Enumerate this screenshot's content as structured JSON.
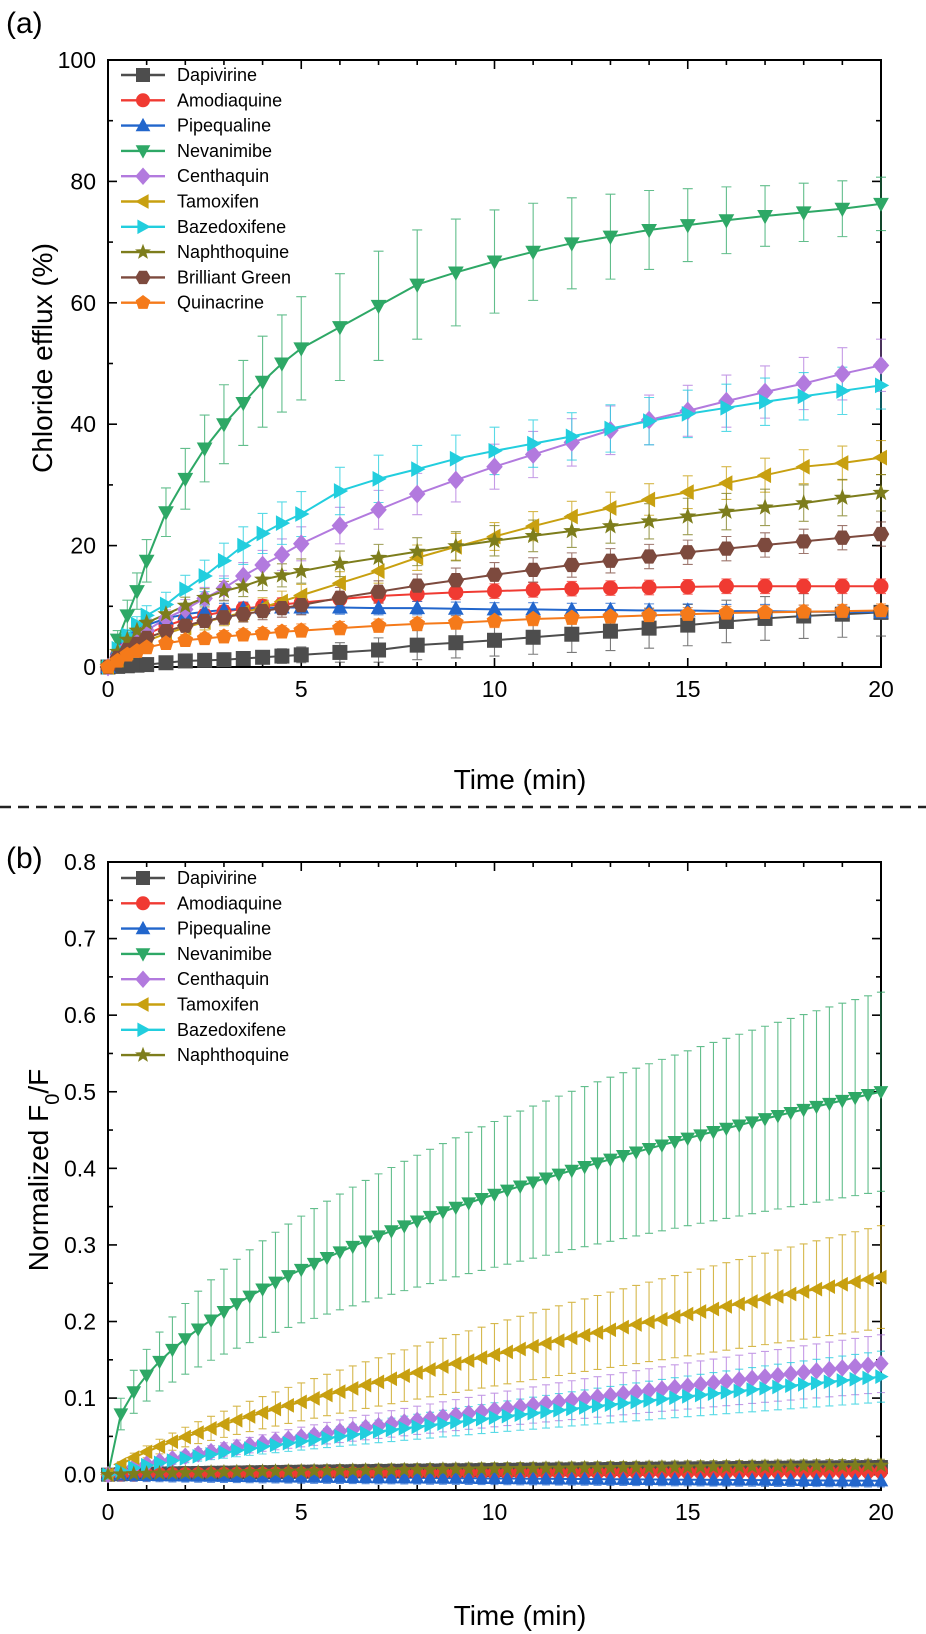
{
  "panels": {
    "a": {
      "label": "(a)"
    },
    "b": {
      "label": "(b)"
    }
  },
  "series_styles": {
    "Dapivirine": {
      "color": "#4d4d4d",
      "marker": "square"
    },
    "Amodiaquine": {
      "color": "#f03a32",
      "marker": "circle"
    },
    "Pipequaline": {
      "color": "#2266cc",
      "marker": "triangle-up"
    },
    "Nevanimibe": {
      "color": "#2ea866",
      "marker": "triangle-down"
    },
    "Centhaquin": {
      "color": "#b27ade",
      "marker": "diamond"
    },
    "Tamoxifen": {
      "color": "#c8a010",
      "marker": "triangle-left"
    },
    "Bazedoxifene": {
      "color": "#22cede",
      "marker": "triangle-right"
    },
    "Naphthoquine": {
      "color": "#7d7d1c",
      "marker": "star"
    },
    "Brilliant Green": {
      "color": "#7d4a3e",
      "marker": "hexagon"
    },
    "Quinacrine": {
      "color": "#f57a1a",
      "marker": "pentagon"
    }
  },
  "chart_data": [
    {
      "type": "line",
      "panel": "(a)",
      "xlabel": "Time (min)",
      "ylabel": "Chloride efflux (%)",
      "xlim": [
        0,
        20
      ],
      "ylim": [
        0,
        100
      ],
      "xticks": [
        "0",
        "5",
        "10",
        "15",
        "20"
      ],
      "yticks": [
        "0",
        "20",
        "40",
        "60",
        "80",
        "100"
      ],
      "legend_position": "top-left",
      "x": [
        0,
        0.25,
        0.5,
        0.75,
        1,
        1.5,
        2,
        2.5,
        3,
        3.5,
        4,
        4.5,
        5,
        6,
        7,
        8,
        9,
        10,
        11,
        12,
        13,
        14,
        15,
        16,
        17,
        18,
        19,
        20
      ],
      "series": [
        {
          "name": "Dapivirine",
          "values": [
            0,
            0.1,
            0.2,
            0.3,
            0.4,
            0.7,
            1,
            1.1,
            1.2,
            1.4,
            1.6,
            1.8,
            2,
            2.4,
            2.8,
            3.6,
            4,
            4.4,
            4.9,
            5.4,
            5.9,
            6.4,
            6.9,
            7.5,
            8,
            8.4,
            8.7,
            9
          ],
          "errors": [
            0,
            0.3,
            0.4,
            0.5,
            0.5,
            0.6,
            0.7,
            0.8,
            0.9,
            1,
            1.1,
            1.2,
            1.3,
            1.6,
            2,
            2.4,
            2.5,
            2.6,
            2.8,
            3,
            3.2,
            3.3,
            3.4,
            3.5,
            3.6,
            3.7,
            3.8,
            3.9
          ]
        },
        {
          "name": "Amodiaquine",
          "values": [
            0,
            2,
            3.5,
            4.6,
            5.4,
            6.8,
            7.8,
            8.5,
            9.1,
            9.6,
            10,
            10.3,
            10.6,
            11.2,
            11.7,
            12,
            12.3,
            12.5,
            12.7,
            12.9,
            13,
            13.1,
            13.2,
            13.3,
            13.3,
            13.3,
            13.3,
            13.3
          ],
          "errors": [
            0,
            0.5,
            0.6,
            0.7,
            0.8,
            0.9,
            1,
            1,
            1,
            1,
            1.1,
            1.1,
            1.1,
            1.2,
            1.2,
            1.2,
            1.2,
            1.2,
            1.2,
            1.2,
            1.2,
            1.2,
            1.2,
            1.2,
            1.2,
            1.2,
            1.2,
            1.2
          ]
        },
        {
          "name": "Pipequaline",
          "values": [
            0,
            3,
            4.8,
            6,
            6.9,
            8,
            8.7,
            9.1,
            9.4,
            9.6,
            9.7,
            9.8,
            9.8,
            9.8,
            9.7,
            9.7,
            9.6,
            9.5,
            9.5,
            9.4,
            9.4,
            9.3,
            9.3,
            9.2,
            9.2,
            9.1,
            9.1,
            9
          ],
          "errors": [
            0,
            0.6,
            0.8,
            0.9,
            1,
            1,
            1.1,
            1.1,
            1.1,
            1.1,
            1.1,
            1.1,
            1.1,
            1.1,
            1.1,
            1.1,
            1.1,
            1.1,
            1.1,
            1.1,
            1.1,
            1.1,
            1.1,
            1.1,
            1.1,
            1.1,
            1.1,
            1.1
          ]
        },
        {
          "name": "Nevanimibe",
          "values": [
            0,
            4.5,
            8.5,
            12.5,
            17.5,
            25.5,
            31,
            36,
            40,
            43.5,
            47,
            50,
            52.5,
            56,
            59.5,
            63,
            65,
            66.8,
            68.4,
            69.8,
            70.9,
            72,
            72.8,
            73.6,
            74.3,
            74.9,
            75.5,
            76.3
          ],
          "errors": [
            0,
            1.5,
            2.5,
            3,
            3.5,
            4,
            5,
            5.5,
            6.5,
            7,
            7.5,
            8,
            8.5,
            8.8,
            9,
            9,
            8.8,
            8.5,
            8,
            7.5,
            7,
            6.5,
            6,
            5.5,
            5,
            4.8,
            4.6,
            4.4
          ]
        },
        {
          "name": "Centhaquin",
          "values": [
            0,
            1.8,
            3.4,
            4.8,
            6,
            8,
            9.5,
            11.3,
            13,
            15,
            16.8,
            18.5,
            20.3,
            23.3,
            25.9,
            28.5,
            30.8,
            33,
            35,
            37,
            39,
            40.7,
            42.2,
            43.8,
            45.3,
            46.7,
            48.3,
            49.7
          ],
          "errors": [
            0,
            0.6,
            0.8,
            1,
            1.2,
            1.4,
            1.6,
            1.8,
            2,
            2.2,
            2.4,
            2.6,
            2.8,
            3,
            3.2,
            3.4,
            3.6,
            3.7,
            3.8,
            3.9,
            4,
            4.1,
            4.2,
            4.3,
            4.3,
            4.3,
            4.3,
            4.3
          ]
        },
        {
          "name": "Tamoxifen",
          "values": [
            0,
            1.2,
            2.4,
            3.4,
            4.3,
            5.5,
            6.5,
            7.4,
            8.2,
            9,
            9.8,
            10.8,
            11.8,
            13.8,
            15.8,
            18,
            19.8,
            21.5,
            23.2,
            24.8,
            26.2,
            27.6,
            28.8,
            30.3,
            31.6,
            33,
            33.6,
            34.5
          ],
          "errors": [
            0,
            0.5,
            0.7,
            0.8,
            1,
            1.1,
            1.2,
            1.3,
            1.4,
            1.5,
            1.6,
            1.7,
            1.8,
            1.9,
            2,
            2.1,
            2.2,
            2.3,
            2.4,
            2.5,
            2.6,
            2.6,
            2.7,
            2.7,
            2.8,
            2.8,
            2.8,
            2.8
          ]
        },
        {
          "name": "Bazedoxifene",
          "values": [
            0,
            3,
            5.2,
            7,
            8.5,
            10.3,
            12.8,
            15,
            17.5,
            20,
            22,
            23.7,
            25.2,
            29,
            31,
            32.6,
            34.3,
            35.6,
            36.8,
            38,
            39.3,
            40.5,
            41.7,
            42.7,
            43.7,
            44.6,
            45.5,
            46.4
          ],
          "errors": [
            0,
            0.8,
            1,
            1.3,
            1.6,
            2,
            2.3,
            2.6,
            2.9,
            3.1,
            3.3,
            3.5,
            3.7,
            3.9,
            3.9,
            3.9,
            3.9,
            3.9,
            3.9,
            3.9,
            3.9,
            3.9,
            3.9,
            3.9,
            3.9,
            3.9,
            3.9,
            3.9
          ]
        },
        {
          "name": "Naphthoquine",
          "values": [
            0,
            2.5,
            4.5,
            6,
            7.3,
            8.7,
            10.1,
            11.4,
            12.5,
            13.3,
            14.4,
            15.1,
            15.8,
            17,
            18,
            19,
            19.9,
            20.8,
            21.6,
            22.4,
            23.2,
            24,
            24.8,
            25.6,
            26.3,
            27,
            27.9,
            28.7
          ],
          "errors": [
            0,
            0.6,
            0.8,
            1,
            1.1,
            1.2,
            1.4,
            1.5,
            1.6,
            1.7,
            1.8,
            1.9,
            2,
            2.1,
            2.2,
            2.3,
            2.4,
            2.5,
            2.6,
            2.7,
            2.8,
            2.9,
            3,
            3,
            3,
            3,
            3,
            3
          ]
        },
        {
          "name": "Brilliant Green",
          "values": [
            0,
            1.5,
            2.8,
            3.8,
            4.8,
            5.9,
            6.8,
            7.6,
            8.2,
            8.7,
            9.2,
            9.7,
            10.2,
            11.4,
            12.4,
            13.4,
            14.3,
            15.2,
            16,
            16.8,
            17.5,
            18.2,
            18.9,
            19.5,
            20.1,
            20.7,
            21.3,
            21.9
          ],
          "errors": [
            0,
            0.5,
            0.6,
            0.7,
            0.8,
            0.9,
            1,
            1.1,
            1.2,
            1.3,
            1.4,
            1.5,
            1.6,
            1.7,
            1.8,
            1.9,
            2,
            2,
            2,
            2,
            2,
            2,
            2,
            2,
            2,
            2,
            2,
            2
          ]
        },
        {
          "name": "Quinacrine",
          "values": [
            0,
            1,
            2,
            2.6,
            3.2,
            3.9,
            4.4,
            4.7,
            5,
            5.3,
            5.5,
            5.8,
            6,
            6.4,
            6.8,
            7.1,
            7.3,
            7.6,
            7.9,
            8.1,
            8.3,
            8.5,
            8.7,
            8.9,
            9,
            9.1,
            9.2,
            9.3
          ],
          "errors": [
            0,
            0.5,
            0.6,
            0.7,
            0.8,
            0.8,
            0.9,
            0.9,
            1,
            1,
            1,
            1,
            1.1,
            1.1,
            1.1,
            1.1,
            1.1,
            1.1,
            1.1,
            1.1,
            1.1,
            1.1,
            1.1,
            1.1,
            1.1,
            1.1,
            1.1,
            1.1
          ]
        }
      ]
    },
    {
      "type": "line",
      "panel": "(b)",
      "xlabel": "Time (min)",
      "ylabel": "Normalized F0/F",
      "ylabel_main": "Normalized F",
      "ylabel_sub": "0",
      "ylabel_tail": "/F",
      "xlim": [
        0,
        20
      ],
      "ylim": [
        -0.02,
        0.8
      ],
      "xticks": [
        "0",
        "5",
        "10",
        "15",
        "20"
      ],
      "yticks": [
        "0.0",
        "0.1",
        "0.2",
        "0.3",
        "0.4",
        "0.5",
        "0.6",
        "0.7",
        "0.8"
      ],
      "legend_position": "top-left",
      "x_start": 0,
      "x_step": 0.3333,
      "x_count": 61,
      "series": [
        {
          "name": "Dapivirine",
          "end": 0.01,
          "curve": 0.7,
          "error_frac": 0.01,
          "error_abs": 0.008
        },
        {
          "name": "Amodiaquine",
          "end": 0.004,
          "curve": 0.7,
          "error_frac": 0.01,
          "error_abs": 0.008
        },
        {
          "name": "Pipequaline",
          "end": -0.008,
          "curve": 0.7,
          "error_frac": 0.01,
          "error_abs": 0.008
        },
        {
          "name": "Nevanimibe",
          "end": 0.5,
          "curve": 0.45,
          "error_frac": 0.26,
          "error_abs": 0.0
        },
        {
          "name": "Centhaquin",
          "end": 0.145,
          "curve": 0.78,
          "error_frac": 0.26,
          "error_abs": 0.0
        },
        {
          "name": "Tamoxifen",
          "end": 0.258,
          "curve": 0.72,
          "error_frac": 0.26,
          "error_abs": 0.0
        },
        {
          "name": "Bazedoxifene",
          "end": 0.128,
          "curve": 0.78,
          "error_frac": 0.26,
          "error_abs": 0.0
        },
        {
          "name": "Naphthoquine",
          "end": 0.012,
          "curve": 0.7,
          "error_frac": 0.01,
          "error_abs": 0.008
        }
      ]
    }
  ]
}
